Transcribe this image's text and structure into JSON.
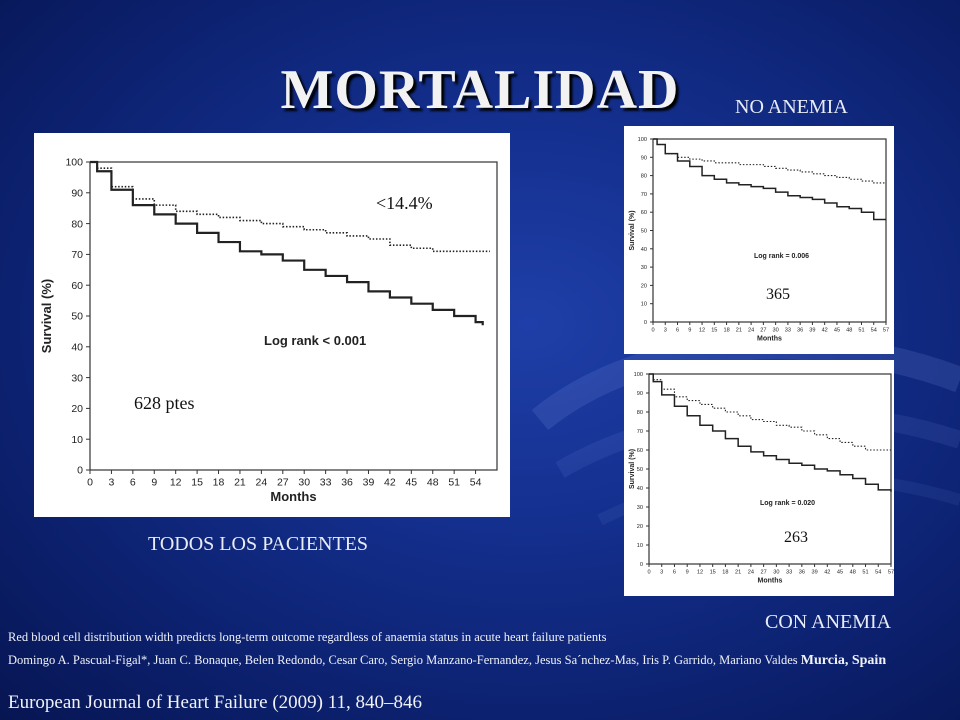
{
  "slide": {
    "title": "MORTALIDAD",
    "label_no_anemia": "NO ANEMIA",
    "label_todos": "TODOS LOS PACIENTES",
    "label_con_anemia": "CON ANEMIA"
  },
  "reference": {
    "article": "Red blood cell distribution  width predicts long-term outcome regardless of anaemia status in acute heart failure patients",
    "authors": "Domingo A. Pascual-Figal*, Juan C. Bonaque, Belen Redondo, Cesar Caro,  Sergio Manzano-Fernandez, Jesus Sa´nchez-Mas, Iris P. Garrido, Mariano Valdes",
    "city": "Murcia, Spain",
    "journal": "European Journal of Heart Failure (2009) 11, 840–846"
  },
  "colors": {
    "background": "#14308f",
    "text": "#e8ecf6",
    "panel": "#ffffff",
    "curve": "#222222"
  },
  "chart_data": [
    {
      "type": "line",
      "id": "all",
      "xlabel": "Months",
      "ylabel": "Survival (%)",
      "xlim": [
        0,
        57
      ],
      "ylim": [
        0,
        100
      ],
      "x_ticks": [
        0,
        3,
        6,
        9,
        12,
        15,
        18,
        21,
        24,
        27,
        30,
        33,
        36,
        39,
        42,
        45,
        48,
        51,
        54
      ],
      "y_ticks": [
        0,
        10,
        20,
        30,
        40,
        50,
        60,
        70,
        80,
        90,
        100
      ],
      "annotations": {
        "log_rank": "Log rank < 0.001",
        "percent": "<14.4%",
        "n": "628 ptes"
      },
      "series": [
        {
          "style": "dotted",
          "x": [
            0,
            1,
            3,
            6,
            9,
            12,
            15,
            18,
            21,
            24,
            27,
            30,
            33,
            36,
            39,
            42,
            45,
            48,
            51,
            54,
            56
          ],
          "y": [
            100,
            98,
            92,
            88,
            86,
            84,
            83,
            82,
            81,
            80,
            79,
            78,
            77,
            76,
            75,
            73,
            72,
            71,
            71,
            71,
            71
          ]
        },
        {
          "style": "solid",
          "x": [
            0,
            1,
            3,
            6,
            9,
            12,
            15,
            18,
            21,
            24,
            27,
            30,
            33,
            36,
            39,
            42,
            45,
            48,
            51,
            54,
            55
          ],
          "y": [
            100,
            97,
            91,
            86,
            83,
            80,
            77,
            74,
            71,
            70,
            68,
            65,
            63,
            61,
            58,
            56,
            54,
            52,
            50,
            48,
            47
          ]
        }
      ]
    },
    {
      "type": "line",
      "id": "no_anemia",
      "xlabel": "Months",
      "ylabel": "Survival (%)",
      "xlim": [
        0,
        57
      ],
      "ylim": [
        0,
        100
      ],
      "x_ticks": [
        0,
        3,
        6,
        9,
        12,
        15,
        18,
        21,
        24,
        27,
        30,
        33,
        36,
        39,
        42,
        45,
        48,
        51,
        54,
        57
      ],
      "y_ticks": [
        0,
        10,
        20,
        30,
        40,
        50,
        60,
        70,
        80,
        90,
        100
      ],
      "annotations": {
        "log_rank": "Log rank = 0.006",
        "n": "365"
      },
      "series": [
        {
          "style": "dotted",
          "x": [
            0,
            1,
            3,
            6,
            9,
            12,
            15,
            18,
            21,
            24,
            27,
            30,
            33,
            36,
            39,
            42,
            45,
            48,
            51,
            54,
            57
          ],
          "y": [
            100,
            97,
            92,
            90,
            89,
            88,
            87,
            87,
            86,
            86,
            85,
            84,
            83,
            82,
            81,
            80,
            79,
            78,
            77,
            76,
            76
          ]
        },
        {
          "style": "solid",
          "x": [
            0,
            1,
            3,
            6,
            9,
            12,
            15,
            18,
            21,
            24,
            27,
            30,
            33,
            36,
            39,
            42,
            45,
            48,
            51,
            54,
            57
          ],
          "y": [
            100,
            97,
            92,
            88,
            85,
            80,
            78,
            76,
            75,
            74,
            73,
            71,
            69,
            68,
            67,
            65,
            63,
            62,
            60,
            56,
            56
          ]
        }
      ]
    },
    {
      "type": "line",
      "id": "con_anemia",
      "xlabel": "Months",
      "ylabel": "Survival (%)",
      "xlim": [
        0,
        57
      ],
      "ylim": [
        0,
        100
      ],
      "x_ticks": [
        0,
        3,
        6,
        9,
        12,
        15,
        18,
        21,
        24,
        27,
        30,
        33,
        36,
        39,
        42,
        45,
        48,
        51,
        54,
        57
      ],
      "y_ticks": [
        0,
        10,
        20,
        30,
        40,
        50,
        60,
        70,
        80,
        90,
        100
      ],
      "annotations": {
        "log_rank": "Log rank = 0.020",
        "n": "263"
      },
      "series": [
        {
          "style": "dotted",
          "x": [
            0,
            1,
            3,
            6,
            9,
            12,
            15,
            18,
            21,
            24,
            27,
            30,
            33,
            36,
            39,
            42,
            45,
            48,
            51,
            54,
            57
          ],
          "y": [
            100,
            97,
            92,
            88,
            86,
            84,
            82,
            80,
            78,
            76,
            75,
            73,
            72,
            70,
            68,
            66,
            64,
            62,
            60,
            60,
            60
          ]
        },
        {
          "style": "solid",
          "x": [
            0,
            1,
            3,
            6,
            9,
            12,
            15,
            18,
            21,
            24,
            27,
            30,
            33,
            36,
            39,
            42,
            45,
            48,
            51,
            54,
            57
          ],
          "y": [
            100,
            96,
            89,
            83,
            78,
            73,
            70,
            66,
            62,
            59,
            57,
            55,
            53,
            52,
            50,
            49,
            47,
            45,
            42,
            39,
            38
          ]
        }
      ]
    }
  ]
}
